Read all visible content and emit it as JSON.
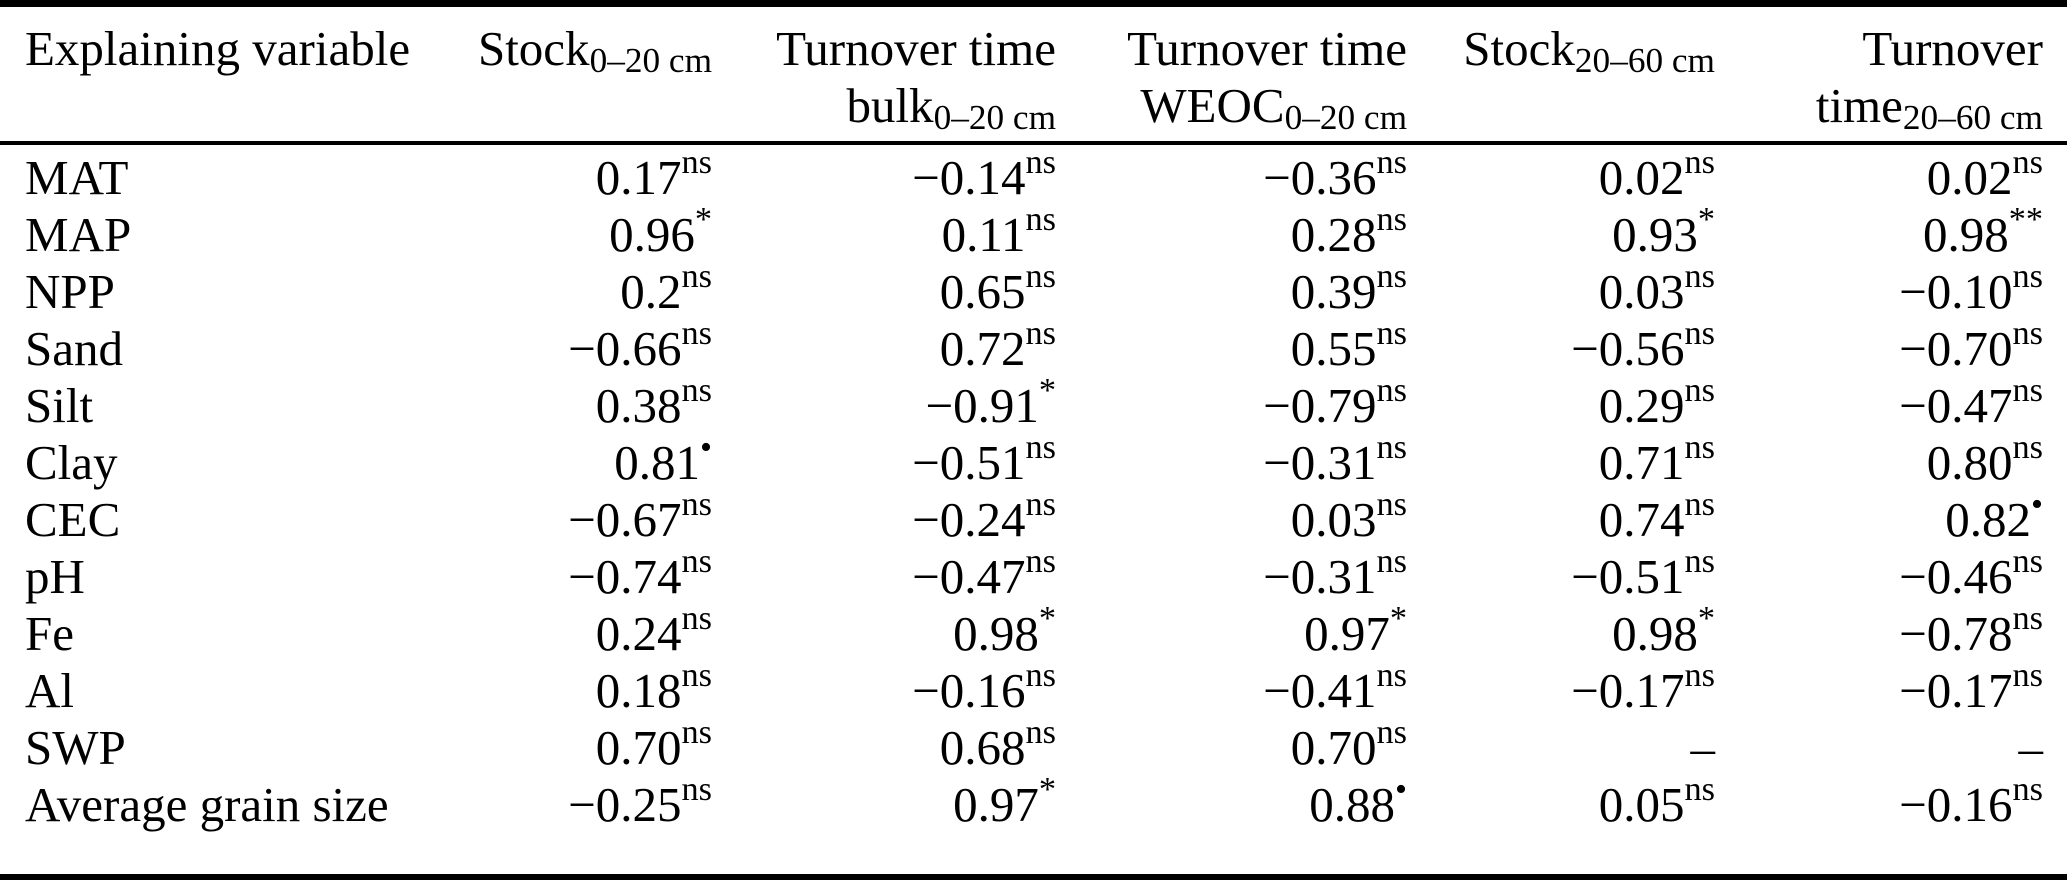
{
  "page": {
    "background": "#ffffff",
    "text_color": "#000000"
  },
  "table": {
    "columns": [
      {
        "id": "explaining-variable",
        "align": "left",
        "lines": [
          [
            {
              "t": "Explaining variable"
            }
          ]
        ]
      },
      {
        "id": "stock-0-20cm",
        "align": "right",
        "lines": [
          [
            {
              "t": "Stock"
            },
            {
              "t": "0–20 cm",
              "sub": true
            }
          ]
        ]
      },
      {
        "id": "turnover-time-bulk-0-20cm",
        "align": "right",
        "lines": [
          [
            {
              "t": "Turnover time"
            }
          ],
          [
            {
              "t": "bulk"
            },
            {
              "t": "0–20 cm",
              "sub": true
            }
          ]
        ]
      },
      {
        "id": "turnover-time-weoc-0-20cm",
        "align": "right",
        "lines": [
          [
            {
              "t": "Turnover time"
            }
          ],
          [
            {
              "t": "WEOC"
            },
            {
              "t": "0–20 cm",
              "sub": true
            }
          ]
        ]
      },
      {
        "id": "stock-20-60cm",
        "align": "right",
        "lines": [
          [
            {
              "t": "Stock"
            },
            {
              "t": "20–60 cm",
              "sub": true
            }
          ]
        ]
      },
      {
        "id": "turnover-time-20-60cm",
        "align": "right",
        "lines": [
          [
            {
              "t": "Turnover"
            }
          ],
          [
            {
              "t": "time"
            },
            {
              "t": "20–60 cm",
              "sub": true
            }
          ]
        ]
      }
    ],
    "rows": [
      {
        "variable": "MAT",
        "cells": [
          {
            "v": "0.17",
            "sup": "ns"
          },
          {
            "v": "−0.14",
            "sup": "ns"
          },
          {
            "v": "−0.36",
            "sup": "ns"
          },
          {
            "v": "0.02",
            "sup": "ns"
          },
          {
            "v": "0.02",
            "sup": "ns"
          }
        ]
      },
      {
        "variable": "MAP",
        "cells": [
          {
            "v": "0.96",
            "sup": "*"
          },
          {
            "v": "0.11",
            "sup": "ns"
          },
          {
            "v": "0.28",
            "sup": "ns"
          },
          {
            "v": "0.93",
            "sup": "*"
          },
          {
            "v": "0.98",
            "sup": "**"
          }
        ]
      },
      {
        "variable": "NPP",
        "cells": [
          {
            "v": "0.2",
            "sup": "ns"
          },
          {
            "v": "0.65",
            "sup": "ns"
          },
          {
            "v": "0.39",
            "sup": "ns"
          },
          {
            "v": "0.03",
            "sup": "ns"
          },
          {
            "v": "−0.10",
            "sup": "ns"
          }
        ]
      },
      {
        "variable": "Sand",
        "cells": [
          {
            "v": "−0.66",
            "sup": "ns"
          },
          {
            "v": "0.72",
            "sup": "ns"
          },
          {
            "v": "0.55",
            "sup": "ns"
          },
          {
            "v": "−0.56",
            "sup": "ns"
          },
          {
            "v": "−0.70",
            "sup": "ns"
          }
        ]
      },
      {
        "variable": "Silt",
        "cells": [
          {
            "v": "0.38",
            "sup": "ns"
          },
          {
            "v": "−0.91",
            "sup": "*"
          },
          {
            "v": "−0.79",
            "sup": "ns"
          },
          {
            "v": "0.29",
            "sup": "ns"
          },
          {
            "v": "−0.47",
            "sup": "ns"
          }
        ]
      },
      {
        "variable": "Clay",
        "cells": [
          {
            "v": "0.81",
            "sup": "•"
          },
          {
            "v": "−0.51",
            "sup": "ns"
          },
          {
            "v": "−0.31",
            "sup": "ns"
          },
          {
            "v": "0.71",
            "sup": "ns"
          },
          {
            "v": "0.80",
            "sup": "ns"
          }
        ]
      },
      {
        "variable": "CEC",
        "cells": [
          {
            "v": "−0.67",
            "sup": "ns"
          },
          {
            "v": "−0.24",
            "sup": "ns"
          },
          {
            "v": "0.03",
            "sup": "ns"
          },
          {
            "v": "0.74",
            "sup": "ns"
          },
          {
            "v": "0.82",
            "sup": "•"
          }
        ]
      },
      {
        "variable": "pH",
        "cells": [
          {
            "v": "−0.74",
            "sup": "ns"
          },
          {
            "v": "−0.47",
            "sup": "ns"
          },
          {
            "v": "−0.31",
            "sup": "ns"
          },
          {
            "v": "−0.51",
            "sup": "ns"
          },
          {
            "v": "−0.46",
            "sup": "ns"
          }
        ]
      },
      {
        "variable": "Fe",
        "cells": [
          {
            "v": "0.24",
            "sup": "ns"
          },
          {
            "v": "0.98",
            "sup": "*"
          },
          {
            "v": "0.97",
            "sup": "*"
          },
          {
            "v": "0.98",
            "sup": "*"
          },
          {
            "v": "−0.78",
            "sup": "ns"
          }
        ]
      },
      {
        "variable": "Al",
        "cells": [
          {
            "v": "0.18",
            "sup": "ns"
          },
          {
            "v": "−0.16",
            "sup": "ns"
          },
          {
            "v": "−0.41",
            "sup": "ns"
          },
          {
            "v": "−0.17",
            "sup": "ns"
          },
          {
            "v": "−0.17",
            "sup": "ns"
          }
        ]
      },
      {
        "variable": "SWP",
        "cells": [
          {
            "v": "0.70",
            "sup": "ns"
          },
          {
            "v": "0.68",
            "sup": "ns"
          },
          {
            "v": "0.70",
            "sup": "ns"
          },
          {
            "v": "–",
            "sup": ""
          },
          {
            "v": "–",
            "sup": ""
          }
        ]
      },
      {
        "variable": "Average grain size",
        "cells": [
          {
            "v": "−0.25",
            "sup": "ns"
          },
          {
            "v": "0.97",
            "sup": "*"
          },
          {
            "v": "0.88",
            "sup": "•"
          },
          {
            "v": "0.05",
            "sup": "ns"
          },
          {
            "v": "−0.16",
            "sup": "ns"
          }
        ]
      }
    ]
  }
}
